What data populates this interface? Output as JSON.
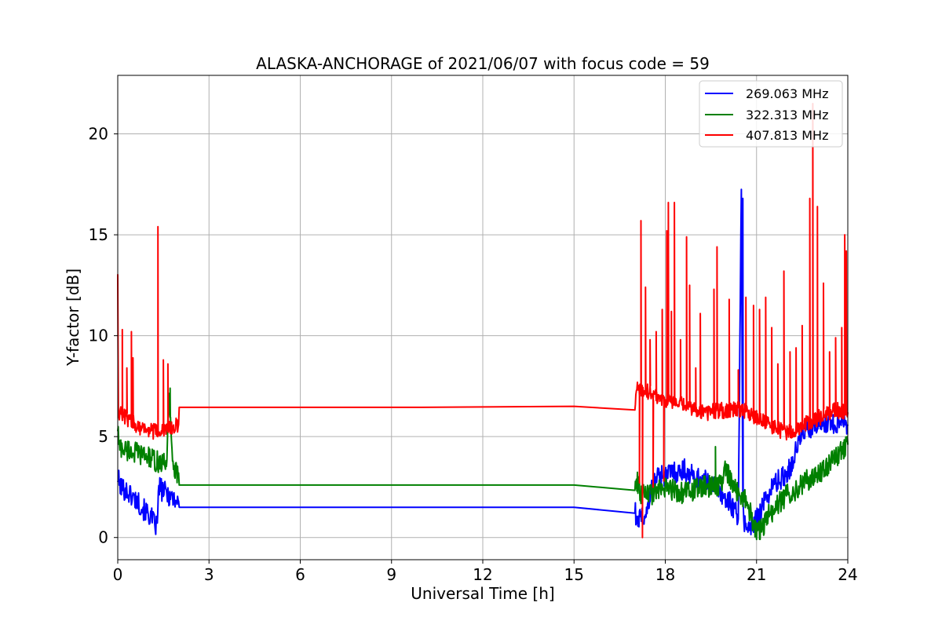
{
  "chart_data": {
    "type": "line",
    "title": "ALASKA-ANCHORAGE of 2021/06/07 with focus code = 59",
    "xlabel": "Universal Time [h]",
    "ylabel": "Y-factor [dB]",
    "xlim": [
      0,
      24
    ],
    "ylim": [
      -1.1,
      22.9
    ],
    "xticks": [
      0,
      3,
      6,
      9,
      12,
      15,
      18,
      21,
      24
    ],
    "xtick_labels": [
      "0",
      "3",
      "6",
      "9",
      "12",
      "15",
      "18",
      "21",
      "24"
    ],
    "yticks": [
      0,
      5,
      10,
      15,
      20
    ],
    "ytick_labels": [
      "0",
      "5",
      "10",
      "15",
      "20"
    ],
    "grid": true,
    "legend_position": "top-right",
    "series": [
      {
        "name": "269.063 MHz",
        "color": "#0000ff",
        "x": [
          0,
          0.05,
          0.1,
          0.3,
          0.5,
          0.7,
          0.9,
          1.1,
          1.2,
          1.3,
          1.35,
          1.4,
          1.6,
          1.8,
          2.0,
          2.02,
          5,
          10,
          15,
          17.0,
          17.05,
          17.2,
          17.4,
          17.6,
          17.8,
          18.0,
          18.2,
          18.4,
          18.6,
          18.8,
          19.0,
          19.2,
          19.4,
          19.6,
          19.8,
          20.0,
          20.2,
          20.4,
          20.5,
          20.55,
          20.6,
          20.8,
          21.0,
          21.2,
          21.4,
          21.6,
          21.8,
          22.0,
          22.2,
          22.4,
          22.6,
          22.8,
          23.0,
          23.2,
          23.4,
          23.6,
          23.8,
          24.0
        ],
        "y": [
          3.0,
          2.7,
          2.5,
          2.3,
          2.0,
          1.7,
          1.3,
          1.0,
          0.7,
          0.5,
          2.6,
          2.4,
          2.2,
          2.0,
          1.8,
          1.5,
          1.5,
          1.5,
          1.5,
          1.45,
          0.8,
          0.9,
          1.3,
          2.7,
          3.2,
          3.0,
          3.3,
          3.2,
          3.4,
          3.1,
          3.0,
          2.9,
          2.7,
          2.6,
          2.3,
          1.9,
          1.6,
          1.1,
          16.8,
          1.6,
          0.8,
          0.4,
          0.9,
          1.6,
          2.2,
          2.7,
          2.9,
          3.2,
          3.8,
          4.8,
          5.4,
          5.3,
          5.6,
          5.7,
          5.8,
          5.6,
          6.0,
          5.6
        ],
        "spikes": [
          [
            20.55,
            16.8
          ]
        ]
      },
      {
        "name": "322.313 MHz",
        "color": "#008000",
        "x": [
          0,
          0.05,
          0.2,
          0.4,
          0.6,
          0.8,
          1.0,
          1.2,
          1.4,
          1.6,
          1.7,
          1.8,
          2.0,
          2.02,
          5,
          10,
          15,
          17.0,
          17.05,
          17.2,
          17.4,
          17.6,
          17.8,
          18.0,
          18.2,
          18.4,
          18.6,
          18.8,
          19.0,
          19.2,
          19.4,
          19.6,
          19.8,
          20.0,
          20.2,
          20.4,
          20.6,
          20.8,
          21.0,
          21.2,
          21.4,
          21.6,
          21.8,
          22.0,
          22.2,
          22.4,
          22.6,
          22.8,
          23.0,
          23.2,
          23.4,
          23.6,
          23.8,
          24.0
        ],
        "y": [
          5.5,
          4.5,
          4.4,
          4.3,
          4.2,
          4.1,
          4.0,
          3.8,
          3.7,
          3.6,
          7.4,
          3.4,
          3.2,
          2.6,
          2.6,
          2.6,
          2.6,
          2.55,
          2.9,
          2.2,
          2.1,
          2.2,
          2.3,
          2.4,
          2.4,
          2.3,
          2.2,
          2.3,
          2.4,
          2.5,
          2.5,
          2.6,
          2.6,
          3.4,
          2.5,
          2.3,
          2.0,
          1.2,
          0.2,
          0.5,
          1.1,
          1.4,
          1.8,
          2.1,
          2.3,
          2.5,
          2.8,
          2.9,
          3.1,
          3.4,
          3.7,
          4.0,
          4.3,
          4.6
        ],
        "spikes": [
          [
            1.72,
            7.4
          ],
          [
            19.65,
            4.5
          ]
        ]
      },
      {
        "name": "407.813 MHz",
        "color": "#ff0000",
        "x": [
          0,
          0.02,
          0.1,
          0.3,
          0.5,
          0.7,
          0.9,
          1.1,
          1.3,
          1.5,
          1.7,
          1.9,
          2.0,
          2.02,
          5,
          10,
          15,
          17.0,
          17.05,
          17.3,
          17.6,
          17.9,
          18.2,
          18.5,
          18.8,
          19.1,
          19.4,
          19.7,
          20.0,
          20.3,
          20.6,
          20.9,
          21.2,
          21.5,
          21.8,
          22.1,
          22.4,
          22.7,
          23.0,
          23.3,
          23.6,
          24.0
        ],
        "y": [
          13.2,
          6.3,
          6.1,
          5.9,
          5.7,
          5.5,
          5.4,
          5.3,
          5.2,
          5.3,
          5.4,
          5.5,
          5.6,
          6.45,
          6.45,
          6.45,
          6.5,
          6.5,
          7.4,
          7.3,
          7.1,
          6.9,
          6.7,
          6.6,
          6.4,
          6.3,
          6.2,
          6.3,
          6.3,
          6.4,
          6.3,
          6.0,
          5.8,
          5.5,
          5.3,
          5.2,
          5.4,
          5.7,
          5.9,
          6.1,
          6.3,
          6.2
        ],
        "spikes": [
          [
            0.15,
            10.3
          ],
          [
            0.3,
            8.4
          ],
          [
            0.45,
            10.2
          ],
          [
            0.5,
            8.9
          ],
          [
            1.32,
            15.4
          ],
          [
            1.5,
            8.8
          ],
          [
            1.65,
            8.6
          ],
          [
            17.2,
            15.7
          ],
          [
            17.35,
            12.4
          ],
          [
            17.5,
            9.8
          ],
          [
            17.7,
            10.2
          ],
          [
            17.9,
            11.3
          ],
          [
            18.05,
            15.2
          ],
          [
            18.1,
            16.6
          ],
          [
            18.2,
            11.2
          ],
          [
            18.3,
            16.6
          ],
          [
            18.5,
            9.8
          ],
          [
            18.7,
            14.9
          ],
          [
            18.8,
            12.5
          ],
          [
            19.0,
            8.4
          ],
          [
            19.15,
            11.1
          ],
          [
            19.6,
            12.3
          ],
          [
            19.7,
            14.4
          ],
          [
            20.1,
            11.8
          ],
          [
            20.4,
            8.3
          ],
          [
            20.65,
            11.9
          ],
          [
            20.9,
            11.5
          ],
          [
            21.1,
            11.3
          ],
          [
            21.3,
            11.9
          ],
          [
            21.5,
            10.4
          ],
          [
            21.7,
            8.6
          ],
          [
            21.9,
            13.2
          ],
          [
            22.1,
            9.2
          ],
          [
            22.3,
            9.4
          ],
          [
            22.5,
            10.5
          ],
          [
            22.75,
            16.8
          ],
          [
            22.85,
            21.5
          ],
          [
            23.0,
            16.4
          ],
          [
            23.2,
            12.6
          ],
          [
            23.4,
            9.2
          ],
          [
            23.6,
            9.9
          ],
          [
            23.8,
            10.4
          ],
          [
            23.9,
            15.0
          ],
          [
            23.95,
            14.2
          ]
        ],
        "drops": [
          [
            17.15,
            2.7
          ],
          [
            17.25,
            0.0
          ],
          [
            17.6,
            2.5
          ],
          [
            17.95,
            2.8
          ]
        ]
      }
    ]
  }
}
